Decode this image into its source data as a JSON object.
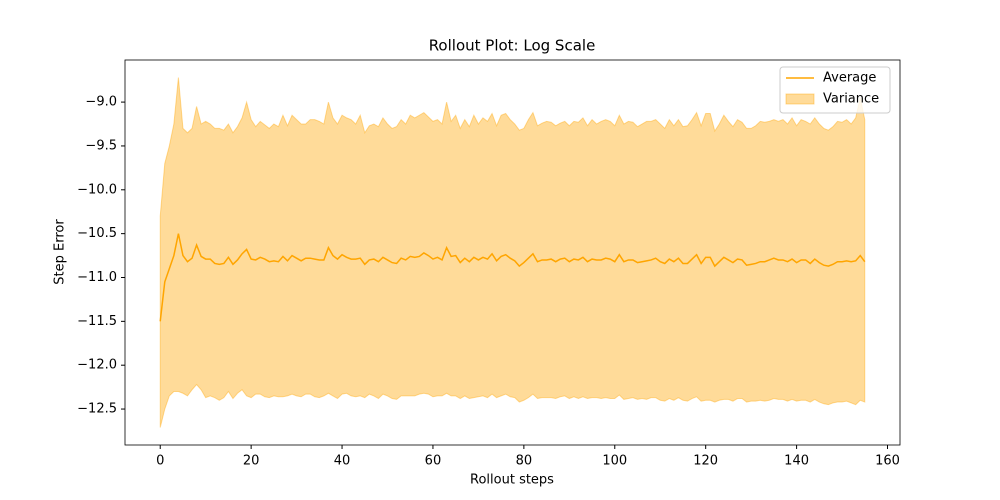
{
  "chart_data": {
    "type": "line",
    "title": "Rollout Plot: Log Scale",
    "xlabel": "Rollout steps",
    "ylabel": "Step Error",
    "x": [
      0,
      1,
      2,
      3,
      4,
      5,
      6,
      7,
      8,
      9,
      10,
      11,
      12,
      13,
      14,
      15,
      16,
      17,
      18,
      19,
      20,
      21,
      22,
      23,
      24,
      25,
      26,
      27,
      28,
      29,
      30,
      31,
      32,
      33,
      34,
      35,
      36,
      37,
      38,
      39,
      40,
      41,
      42,
      43,
      44,
      45,
      46,
      47,
      48,
      49,
      50,
      51,
      52,
      53,
      54,
      55,
      56,
      57,
      58,
      59,
      60,
      61,
      62,
      63,
      64,
      65,
      66,
      67,
      68,
      69,
      70,
      71,
      72,
      73,
      74,
      75,
      76,
      77,
      78,
      79,
      80,
      81,
      82,
      83,
      84,
      85,
      86,
      87,
      88,
      89,
      90,
      91,
      92,
      93,
      94,
      95,
      96,
      97,
      98,
      99,
      100,
      101,
      102,
      103,
      104,
      105,
      106,
      107,
      108,
      109,
      110,
      111,
      112,
      113,
      114,
      115,
      116,
      117,
      118,
      119,
      120,
      121,
      122,
      123,
      124,
      125,
      126,
      127,
      128,
      129,
      130,
      131,
      132,
      133,
      134,
      135,
      136,
      137,
      138,
      139,
      140,
      141,
      142,
      143,
      144,
      145,
      146,
      147,
      148,
      149,
      150,
      151,
      152,
      153,
      154,
      155
    ],
    "series": [
      {
        "name": "Average",
        "color": "#ffa500",
        "values": [
          -11.5,
          -11.05,
          -10.9,
          -10.75,
          -10.5,
          -10.75,
          -10.82,
          -10.78,
          -10.63,
          -10.76,
          -10.79,
          -10.79,
          -10.84,
          -10.85,
          -10.84,
          -10.77,
          -10.85,
          -10.8,
          -10.73,
          -10.68,
          -10.79,
          -10.8,
          -10.77,
          -10.79,
          -10.82,
          -10.81,
          -10.82,
          -10.76,
          -10.81,
          -10.75,
          -10.78,
          -10.81,
          -10.78,
          -10.78,
          -10.79,
          -10.8,
          -10.8,
          -10.66,
          -10.75,
          -10.79,
          -10.74,
          -10.77,
          -10.79,
          -10.79,
          -10.78,
          -10.85,
          -10.8,
          -10.79,
          -10.82,
          -10.77,
          -10.8,
          -10.83,
          -10.84,
          -10.78,
          -10.8,
          -10.76,
          -10.77,
          -10.76,
          -10.72,
          -10.75,
          -10.79,
          -10.77,
          -10.8,
          -10.66,
          -10.76,
          -10.75,
          -10.83,
          -10.78,
          -10.82,
          -10.77,
          -10.8,
          -10.77,
          -10.79,
          -10.73,
          -10.81,
          -10.76,
          -10.74,
          -10.78,
          -10.81,
          -10.87,
          -10.83,
          -10.78,
          -10.73,
          -10.82,
          -10.8,
          -10.8,
          -10.79,
          -10.82,
          -10.79,
          -10.78,
          -10.82,
          -10.79,
          -10.8,
          -10.77,
          -10.82,
          -10.79,
          -10.8,
          -10.8,
          -10.78,
          -10.79,
          -10.82,
          -10.74,
          -10.82,
          -10.8,
          -10.8,
          -10.83,
          -10.82,
          -10.81,
          -10.8,
          -10.78,
          -10.82,
          -10.84,
          -10.79,
          -10.82,
          -10.78,
          -10.84,
          -10.84,
          -10.79,
          -10.74,
          -10.84,
          -10.77,
          -10.77,
          -10.87,
          -10.82,
          -10.77,
          -10.8,
          -10.83,
          -10.79,
          -10.8,
          -10.86,
          -10.85,
          -10.84,
          -10.82,
          -10.82,
          -10.8,
          -10.78,
          -10.8,
          -10.8,
          -10.82,
          -10.79,
          -10.83,
          -10.8,
          -10.8,
          -10.84,
          -10.79,
          -10.83,
          -10.86,
          -10.87,
          -10.85,
          -10.82,
          -10.82,
          -10.81,
          -10.82,
          -10.81,
          -10.75,
          -10.82
        ]
      },
      {
        "name": "Variance",
        "color": "#ffa500",
        "opacity": 0.4,
        "upper": [
          -10.3,
          -9.7,
          -9.5,
          -9.25,
          -8.72,
          -9.3,
          -9.35,
          -9.3,
          -9.05,
          -9.25,
          -9.22,
          -9.25,
          -9.3,
          -9.3,
          -9.32,
          -9.25,
          -9.35,
          -9.28,
          -9.18,
          -9.0,
          -9.2,
          -9.28,
          -9.22,
          -9.26,
          -9.3,
          -9.25,
          -9.28,
          -9.15,
          -9.27,
          -9.15,
          -9.2,
          -9.25,
          -9.25,
          -9.2,
          -9.2,
          -9.22,
          -9.25,
          -9.0,
          -9.18,
          -9.25,
          -9.15,
          -9.18,
          -9.2,
          -9.25,
          -9.15,
          -9.35,
          -9.27,
          -9.25,
          -9.28,
          -9.18,
          -9.25,
          -9.3,
          -9.28,
          -9.2,
          -9.25,
          -9.15,
          -9.18,
          -9.15,
          -9.12,
          -9.17,
          -9.22,
          -9.2,
          -9.25,
          -9.0,
          -9.22,
          -9.15,
          -9.3,
          -9.2,
          -9.28,
          -9.15,
          -9.25,
          -9.18,
          -9.22,
          -9.13,
          -9.27,
          -9.15,
          -9.13,
          -9.2,
          -9.25,
          -9.32,
          -9.3,
          -9.2,
          -9.12,
          -9.27,
          -9.24,
          -9.22,
          -9.23,
          -9.27,
          -9.24,
          -9.22,
          -9.27,
          -9.22,
          -9.23,
          -9.18,
          -9.27,
          -9.2,
          -9.25,
          -9.22,
          -9.2,
          -9.22,
          -9.27,
          -9.15,
          -9.25,
          -9.22,
          -9.23,
          -9.28,
          -9.25,
          -9.22,
          -9.22,
          -9.2,
          -9.25,
          -9.3,
          -9.2,
          -9.27,
          -9.2,
          -9.28,
          -9.27,
          -9.2,
          -9.12,
          -9.27,
          -9.13,
          -9.13,
          -9.33,
          -9.25,
          -9.15,
          -9.22,
          -9.28,
          -9.2,
          -9.23,
          -9.3,
          -9.3,
          -9.27,
          -9.22,
          -9.23,
          -9.22,
          -9.2,
          -9.22,
          -9.2,
          -9.25,
          -9.18,
          -9.27,
          -9.2,
          -9.22,
          -9.25,
          -9.18,
          -9.25,
          -9.3,
          -9.32,
          -9.28,
          -9.22,
          -9.23,
          -9.2,
          -9.25,
          -9.18,
          -8.95,
          -9.2
        ],
        "lower": [
          -12.71,
          -12.5,
          -12.35,
          -12.3,
          -12.3,
          -12.32,
          -12.35,
          -12.28,
          -12.22,
          -12.28,
          -12.37,
          -12.35,
          -12.37,
          -12.4,
          -12.37,
          -12.3,
          -12.38,
          -12.32,
          -12.28,
          -12.35,
          -12.37,
          -12.33,
          -12.33,
          -12.36,
          -12.37,
          -12.35,
          -12.36,
          -12.36,
          -12.35,
          -12.33,
          -12.35,
          -12.36,
          -12.33,
          -12.33,
          -12.36,
          -12.37,
          -12.35,
          -12.32,
          -12.35,
          -12.38,
          -12.33,
          -12.32,
          -12.35,
          -12.36,
          -12.35,
          -12.37,
          -12.33,
          -12.35,
          -12.38,
          -12.33,
          -12.35,
          -12.38,
          -12.39,
          -12.35,
          -12.35,
          -12.35,
          -12.35,
          -12.33,
          -12.32,
          -12.33,
          -12.36,
          -12.35,
          -12.35,
          -12.32,
          -12.35,
          -12.35,
          -12.38,
          -12.35,
          -12.38,
          -12.37,
          -12.36,
          -12.35,
          -12.37,
          -12.33,
          -12.37,
          -12.35,
          -12.33,
          -12.36,
          -12.37,
          -12.42,
          -12.4,
          -12.37,
          -12.33,
          -12.38,
          -12.37,
          -12.37,
          -12.37,
          -12.38,
          -12.36,
          -12.35,
          -12.38,
          -12.36,
          -12.38,
          -12.36,
          -12.38,
          -12.37,
          -12.37,
          -12.38,
          -12.37,
          -12.38,
          -12.38,
          -12.34,
          -12.39,
          -12.38,
          -12.37,
          -12.39,
          -12.38,
          -12.39,
          -12.37,
          -12.37,
          -12.4,
          -12.41,
          -12.38,
          -12.4,
          -12.37,
          -12.4,
          -12.41,
          -12.38,
          -12.36,
          -12.41,
          -12.4,
          -12.4,
          -12.42,
          -12.4,
          -12.39,
          -12.39,
          -12.41,
          -12.38,
          -12.38,
          -12.42,
          -12.41,
          -12.41,
          -12.4,
          -12.41,
          -12.4,
          -12.38,
          -12.39,
          -12.39,
          -12.41,
          -12.39,
          -12.41,
          -12.4,
          -12.4,
          -12.42,
          -12.39,
          -12.42,
          -12.44,
          -12.45,
          -12.43,
          -12.42,
          -12.42,
          -12.41,
          -12.43,
          -12.45,
          -12.4,
          -12.42
        ]
      }
    ],
    "xlim": [
      -7.75,
      162.75
    ],
    "xticks": [
      0,
      20,
      40,
      60,
      80,
      100,
      120,
      140,
      160
    ],
    "ylim": [
      -12.91,
      -8.52
    ],
    "yticks": [
      {
        "value": -12.5,
        "label": "−12.5"
      },
      {
        "value": -12.0,
        "label": "−12.0"
      },
      {
        "value": -11.5,
        "label": "−11.5"
      },
      {
        "value": -11.0,
        "label": "−11.0"
      },
      {
        "value": -10.5,
        "label": "−10.5"
      },
      {
        "value": -10.0,
        "label": "−10.0"
      },
      {
        "value": -9.5,
        "label": "−9.5"
      },
      {
        "value": -9.0,
        "label": "−9.0"
      }
    ],
    "grid": false,
    "legend": "upper right"
  }
}
